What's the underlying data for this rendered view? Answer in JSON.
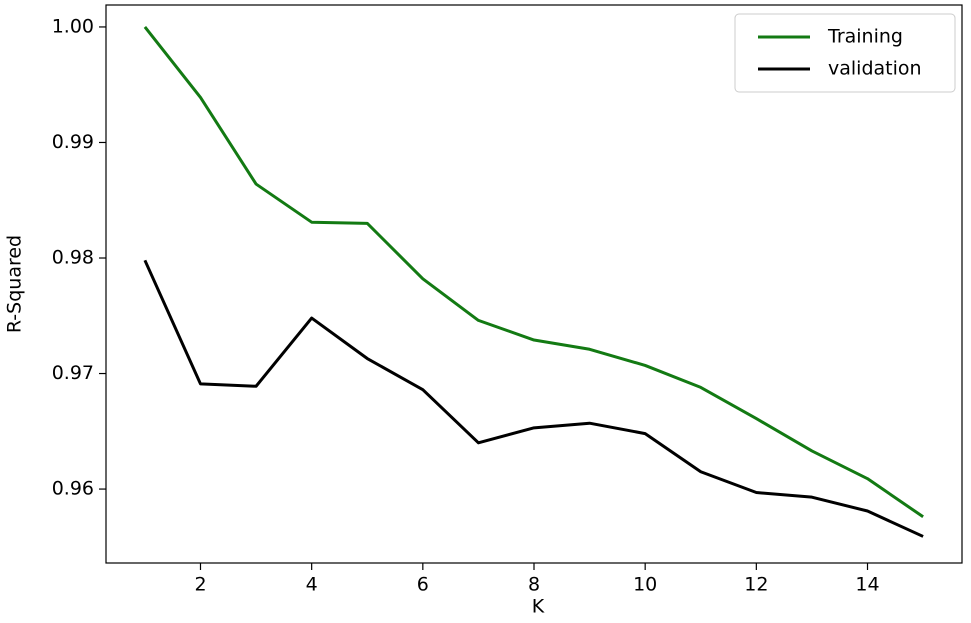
{
  "chart_data": {
    "type": "line",
    "x_label": "K",
    "y_label": "R-Squared",
    "x": [
      1,
      2,
      3,
      4,
      5,
      6,
      7,
      8,
      9,
      10,
      11,
      12,
      13,
      14,
      15
    ],
    "series": [
      {
        "name": "Training",
        "color": "#137a13",
        "values": [
          1.0,
          0.9939,
          0.9864,
          0.9831,
          0.983,
          0.9782,
          0.9746,
          0.9729,
          0.9721,
          0.9707,
          0.9688,
          0.9661,
          0.9633,
          0.9609,
          0.9576
        ]
      },
      {
        "name": "validation",
        "color": "#000000",
        "values": [
          0.9798,
          0.9691,
          0.9689,
          0.9748,
          0.9713,
          0.9686,
          0.964,
          0.9653,
          0.9657,
          0.9648,
          0.9615,
          0.9597,
          0.9593,
          0.9581,
          0.9559
        ]
      }
    ],
    "xlim": [
      0.3,
      15.7
    ],
    "xticks": [
      2,
      4,
      6,
      8,
      10,
      12,
      14
    ],
    "ylim": [
      0.9536,
      1.0019
    ],
    "yticks": [
      0.96,
      0.97,
      0.98,
      0.99,
      {
        "value": 1,
        "label": "1.00"
      }
    ],
    "grid": false,
    "legend": "upper-right"
  }
}
